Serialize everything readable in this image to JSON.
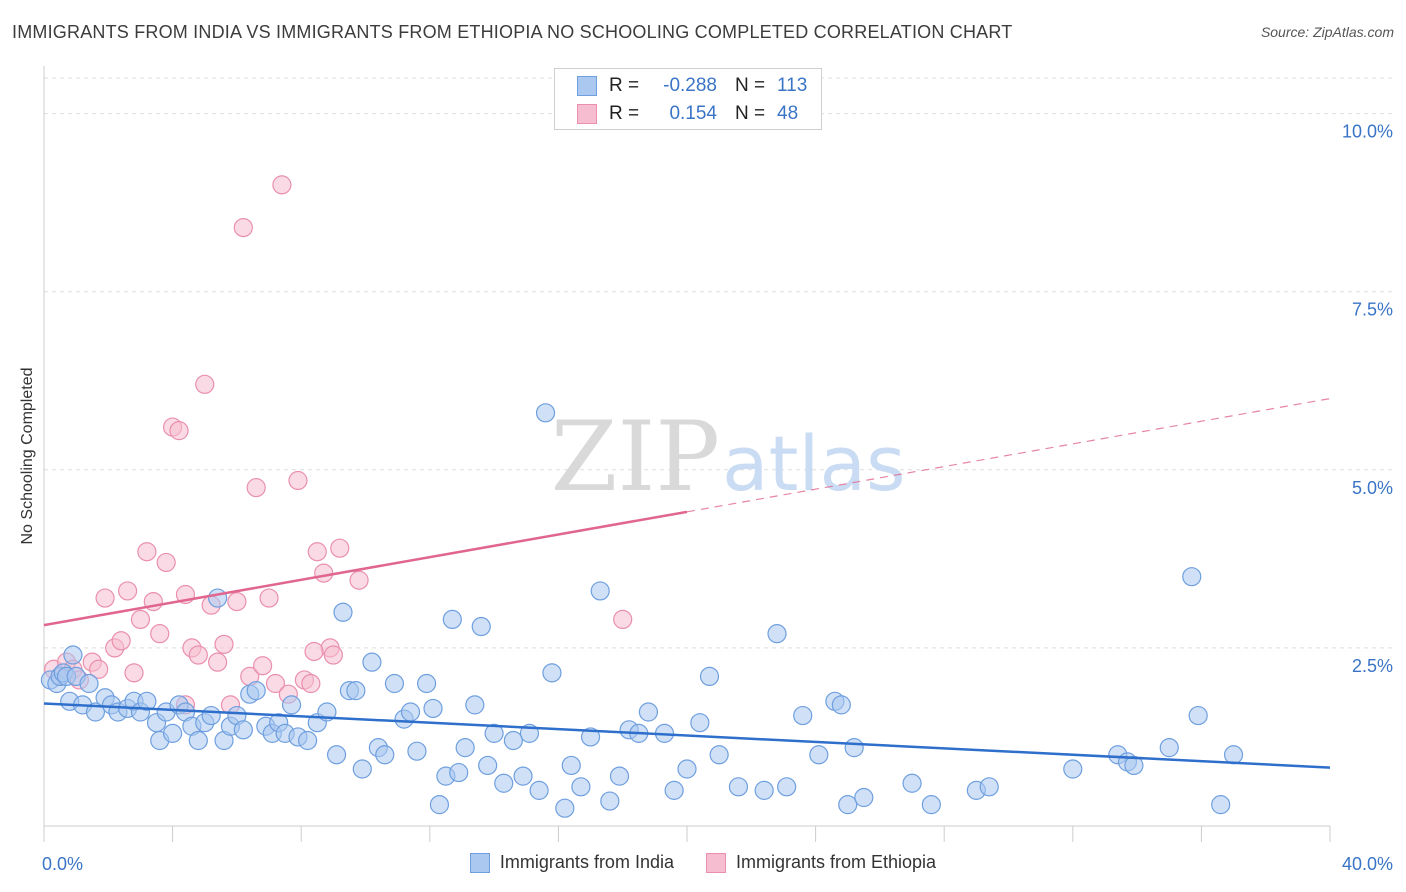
{
  "header": {
    "title": "IMMIGRANTS FROM INDIA VS IMMIGRANTS FROM ETHIOPIA NO SCHOOLING COMPLETED CORRELATION CHART",
    "source": "Source: ZipAtlas.com"
  },
  "watermark": {
    "zip": "ZIP",
    "atlas": "atlas"
  },
  "legend": {
    "rows": [
      {
        "r_label": "R =",
        "r_value": "-0.288",
        "n_label": "N =",
        "n_value": "113"
      },
      {
        "r_label": "R =",
        "r_value": "0.154",
        "n_label": "N =",
        "n_value": "48"
      }
    ]
  },
  "colors": {
    "india_fill": "#aac8f0",
    "india_stroke": "#6f9fdf",
    "india_line": "#2e6fcc",
    "ethiopia_fill": "#f6bdd0",
    "ethiopia_stroke": "#ea8fae",
    "ethiopia_line": "#e0668f",
    "tick_label": "#3a74c7",
    "grid": "#dddddd"
  },
  "chart_data": {
    "type": "scatter",
    "title": "IMMIGRANTS FROM INDIA VS IMMIGRANTS FROM ETHIOPIA NO SCHOOLING COMPLETED CORRELATION CHART",
    "xlabel": "",
    "ylabel": "No Schooling Completed",
    "xlim": [
      0,
      40
    ],
    "ylim": [
      0,
      10.5
    ],
    "x_tick_labels": [
      "0.0%",
      "40.0%"
    ],
    "y_ticks": [
      2.5,
      5.0,
      7.5,
      10.0
    ],
    "y_tick_labels": [
      "2.5%",
      "5.0%",
      "7.5%",
      "10.0%"
    ],
    "grid": true,
    "legend_position": "top-center",
    "series": [
      {
        "name": "Immigrants from India",
        "r": -0.288,
        "n": 113,
        "trend": {
          "x0": 0,
          "y0": 1.72,
          "x1": 40,
          "y1": 0.82,
          "solid_until": 40
        },
        "points": [
          [
            0.2,
            2.05
          ],
          [
            0.4,
            2.0
          ],
          [
            0.5,
            2.1
          ],
          [
            0.6,
            2.15
          ],
          [
            0.7,
            2.1
          ],
          [
            0.8,
            1.75
          ],
          [
            0.9,
            2.4
          ],
          [
            1.0,
            2.1
          ],
          [
            1.2,
            1.7
          ],
          [
            1.4,
            2.0
          ],
          [
            1.6,
            1.6
          ],
          [
            1.9,
            1.8
          ],
          [
            2.1,
            1.7
          ],
          [
            2.3,
            1.6
          ],
          [
            2.6,
            1.65
          ],
          [
            2.8,
            1.75
          ],
          [
            3.0,
            1.6
          ],
          [
            3.2,
            1.75
          ],
          [
            3.5,
            1.45
          ],
          [
            3.6,
            1.2
          ],
          [
            3.8,
            1.6
          ],
          [
            4.0,
            1.3
          ],
          [
            4.2,
            1.7
          ],
          [
            4.4,
            1.6
          ],
          [
            4.6,
            1.4
          ],
          [
            4.8,
            1.2
          ],
          [
            5.0,
            1.45
          ],
          [
            5.2,
            1.55
          ],
          [
            5.4,
            3.2
          ],
          [
            5.6,
            1.2
          ],
          [
            5.8,
            1.4
          ],
          [
            6.0,
            1.55
          ],
          [
            6.2,
            1.35
          ],
          [
            6.4,
            1.85
          ],
          [
            6.6,
            1.9
          ],
          [
            6.9,
            1.4
          ],
          [
            7.1,
            1.3
          ],
          [
            7.3,
            1.45
          ],
          [
            7.5,
            1.3
          ],
          [
            7.7,
            1.7
          ],
          [
            7.9,
            1.25
          ],
          [
            8.2,
            1.2
          ],
          [
            8.5,
            1.45
          ],
          [
            8.8,
            1.6
          ],
          [
            9.1,
            1.0
          ],
          [
            9.3,
            3.0
          ],
          [
            9.5,
            1.9
          ],
          [
            9.7,
            1.9
          ],
          [
            9.9,
            0.8
          ],
          [
            10.2,
            2.3
          ],
          [
            10.4,
            1.1
          ],
          [
            10.6,
            1.0
          ],
          [
            10.9,
            2.0
          ],
          [
            11.2,
            1.5
          ],
          [
            11.4,
            1.6
          ],
          [
            11.6,
            1.05
          ],
          [
            11.9,
            2.0
          ],
          [
            12.1,
            1.65
          ],
          [
            12.3,
            0.3
          ],
          [
            12.5,
            0.7
          ],
          [
            12.7,
            2.9
          ],
          [
            12.9,
            0.75
          ],
          [
            13.1,
            1.1
          ],
          [
            13.4,
            1.7
          ],
          [
            13.6,
            2.8
          ],
          [
            13.8,
            0.85
          ],
          [
            14.0,
            1.3
          ],
          [
            14.3,
            0.6
          ],
          [
            14.6,
            1.2
          ],
          [
            14.9,
            0.7
          ],
          [
            15.1,
            1.3
          ],
          [
            15.4,
            0.5
          ],
          [
            15.6,
            5.8
          ],
          [
            15.8,
            2.15
          ],
          [
            16.2,
            0.25
          ],
          [
            16.4,
            0.85
          ],
          [
            16.7,
            0.55
          ],
          [
            17.0,
            1.25
          ],
          [
            17.3,
            3.3
          ],
          [
            17.6,
            0.35
          ],
          [
            17.9,
            0.7
          ],
          [
            18.2,
            1.35
          ],
          [
            18.5,
            1.3
          ],
          [
            18.8,
            1.6
          ],
          [
            19.3,
            1.3
          ],
          [
            19.6,
            0.5
          ],
          [
            20.0,
            0.8
          ],
          [
            20.4,
            1.45
          ],
          [
            20.7,
            2.1
          ],
          [
            21.0,
            1.0
          ],
          [
            21.6,
            0.55
          ],
          [
            22.4,
            0.5
          ],
          [
            22.8,
            2.7
          ],
          [
            23.1,
            0.55
          ],
          [
            23.6,
            1.55
          ],
          [
            24.1,
            1.0
          ],
          [
            24.6,
            1.75
          ],
          [
            24.8,
            1.7
          ],
          [
            25.0,
            0.3
          ],
          [
            25.2,
            1.1
          ],
          [
            25.5,
            0.4
          ],
          [
            27.0,
            0.6
          ],
          [
            27.6,
            0.3
          ],
          [
            29.0,
            0.5
          ],
          [
            29.4,
            0.55
          ],
          [
            32.0,
            0.8
          ],
          [
            33.4,
            1.0
          ],
          [
            33.7,
            0.9
          ],
          [
            33.9,
            0.85
          ],
          [
            35.0,
            1.1
          ],
          [
            35.7,
            3.5
          ],
          [
            35.9,
            1.55
          ],
          [
            36.6,
            0.3
          ],
          [
            37.0,
            1.0
          ]
        ]
      },
      {
        "name": "Immigrants from Ethiopia",
        "r": 0.154,
        "n": 48,
        "trend": {
          "x0": 0,
          "y0": 2.82,
          "x1": 40,
          "y1": 6.0,
          "solid_until": 20.0
        },
        "points": [
          [
            0.3,
            2.2
          ],
          [
            0.5,
            2.1
          ],
          [
            0.7,
            2.3
          ],
          [
            0.9,
            2.2
          ],
          [
            1.1,
            2.05
          ],
          [
            1.5,
            2.3
          ],
          [
            1.7,
            2.2
          ],
          [
            1.9,
            3.2
          ],
          [
            2.2,
            2.5
          ],
          [
            2.4,
            2.6
          ],
          [
            2.6,
            3.3
          ],
          [
            2.8,
            2.15
          ],
          [
            3.0,
            2.9
          ],
          [
            3.2,
            3.85
          ],
          [
            3.4,
            3.15
          ],
          [
            3.6,
            2.7
          ],
          [
            3.8,
            3.7
          ],
          [
            4.0,
            5.6
          ],
          [
            4.2,
            5.55
          ],
          [
            4.4,
            3.25
          ],
          [
            4.6,
            2.5
          ],
          [
            4.8,
            2.4
          ],
          [
            5.0,
            6.2
          ],
          [
            5.2,
            3.1
          ],
          [
            5.4,
            2.3
          ],
          [
            5.6,
            2.55
          ],
          [
            5.8,
            1.7
          ],
          [
            6.0,
            3.15
          ],
          [
            6.2,
            8.4
          ],
          [
            6.4,
            2.1
          ],
          [
            6.6,
            4.75
          ],
          [
            6.8,
            2.25
          ],
          [
            7.0,
            3.2
          ],
          [
            7.2,
            2.0
          ],
          [
            7.4,
            9.0
          ],
          [
            7.6,
            1.85
          ],
          [
            7.9,
            4.85
          ],
          [
            8.1,
            2.05
          ],
          [
            8.3,
            2.0
          ],
          [
            8.5,
            3.85
          ],
          [
            8.7,
            3.55
          ],
          [
            8.9,
            2.5
          ],
          [
            9.2,
            3.9
          ],
          [
            9.8,
            3.45
          ],
          [
            18.0,
            2.9
          ],
          [
            4.4,
            1.7
          ],
          [
            8.4,
            2.45
          ],
          [
            9.0,
            2.4
          ]
        ]
      }
    ]
  }
}
